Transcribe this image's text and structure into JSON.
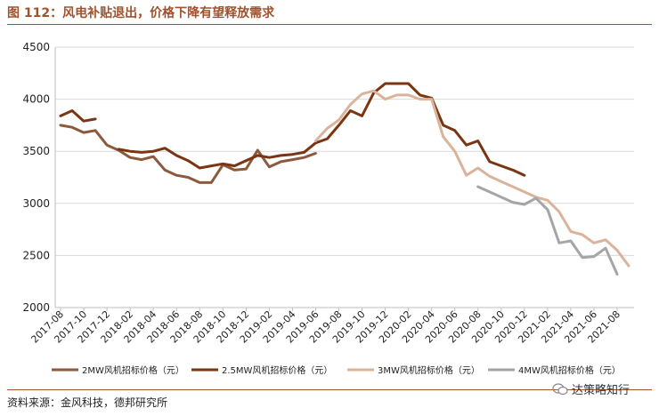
{
  "figure_title": "图 112：风电补贴退出，价格下降有望释放需求",
  "source_note": "资料来源：金风科技，德邦研究所",
  "watermark": "达策略知行",
  "chart_data": {
    "type": "line",
    "title": "",
    "xlabel": "",
    "ylabel": "",
    "ylim": [
      2000,
      4500
    ],
    "yticks": [
      2000,
      2500,
      3000,
      3500,
      4000,
      4500
    ],
    "grid": "horizontal",
    "legend_position": "bottom",
    "categories": [
      "2017-08",
      "2017-09",
      "2017-10",
      "2017-11",
      "2017-12",
      "2018-01",
      "2018-02",
      "2018-03",
      "2018-04",
      "2018-05",
      "2018-06",
      "2018-07",
      "2018-08",
      "2018-09",
      "2018-10",
      "2018-11",
      "2018-12",
      "2019-01",
      "2019-02",
      "2019-03",
      "2019-04",
      "2019-05",
      "2019-06",
      "2019-07",
      "2019-08",
      "2019-09",
      "2019-10",
      "2019-11",
      "2019-12",
      "2020-01",
      "2020-02",
      "2020-03",
      "2020-04",
      "2020-05",
      "2020-06",
      "2020-07",
      "2020-08",
      "2020-09",
      "2020-10",
      "2020-11",
      "2020-12",
      "2021-01",
      "2021-02",
      "2021-03",
      "2021-04",
      "2021-05",
      "2021-06",
      "2021-07",
      "2021-08",
      "2021-09"
    ],
    "tick_labels": [
      "2017-08",
      "2017-10",
      "2017-12",
      "2018-02",
      "2018-04",
      "2018-06",
      "2018-08",
      "2018-10",
      "2018-12",
      "2019-02",
      "2019-04",
      "2019-06",
      "2019-08",
      "2019-10",
      "2019-12",
      "2020-02",
      "2020-04",
      "2020-06",
      "2020-08",
      "2020-10",
      "2020-12",
      "2021-02",
      "2021-04",
      "2021-06",
      "2021-08"
    ],
    "series": [
      {
        "name": "2MW风机招标价格（元）",
        "color": "#8b5a3c",
        "values": [
          3750,
          3730,
          3680,
          3700,
          3560,
          3510,
          3440,
          3420,
          3450,
          3320,
          3270,
          3250,
          3200,
          3200,
          3370,
          3320,
          3330,
          3510,
          3350,
          3400,
          3420,
          3440,
          3480,
          null,
          null,
          null,
          null,
          null,
          null,
          null,
          null,
          null,
          null,
          null,
          null,
          null,
          null,
          null,
          null,
          null,
          null,
          null,
          null,
          null,
          null,
          null,
          null,
          null,
          null,
          null
        ]
      },
      {
        "name": "2.5MW风机招标价格（元）",
        "color": "#7a3513",
        "values": [
          3840,
          3890,
          3790,
          3810,
          null,
          3520,
          3500,
          3490,
          3500,
          3530,
          3460,
          3410,
          3340,
          3360,
          3380,
          3360,
          3410,
          3460,
          3440,
          3460,
          3470,
          3490,
          3580,
          3620,
          3750,
          3890,
          3840,
          4060,
          4150,
          4150,
          4150,
          4040,
          4010,
          3750,
          3700,
          3560,
          3600,
          3400,
          3360,
          3320,
          3270,
          null,
          null,
          null,
          null,
          null,
          null,
          null,
          null,
          null
        ]
      },
      {
        "name": "3MW风机招标价格（元）",
        "color": "#d9b49a",
        "values": [
          null,
          null,
          null,
          null,
          null,
          null,
          null,
          null,
          null,
          null,
          null,
          null,
          null,
          null,
          null,
          null,
          null,
          null,
          null,
          null,
          null,
          null,
          3600,
          3720,
          3800,
          3950,
          4050,
          4080,
          4000,
          4040,
          4040,
          4000,
          4000,
          3640,
          3500,
          3270,
          3340,
          3260,
          3210,
          3160,
          3110,
          3060,
          3030,
          2920,
          2730,
          2700,
          2620,
          2650,
          2550,
          2400
        ]
      },
      {
        "name": "4MW风机招标价格（元）",
        "color": "#a5a5a5",
        "values": [
          null,
          null,
          null,
          null,
          null,
          null,
          null,
          null,
          null,
          null,
          null,
          null,
          null,
          null,
          null,
          null,
          null,
          null,
          null,
          null,
          null,
          null,
          null,
          null,
          null,
          null,
          null,
          null,
          null,
          null,
          null,
          null,
          null,
          null,
          null,
          null,
          3160,
          3110,
          3060,
          3010,
          2990,
          3050,
          2940,
          2620,
          2640,
          2480,
          2490,
          2570,
          2320,
          null
        ]
      }
    ]
  }
}
